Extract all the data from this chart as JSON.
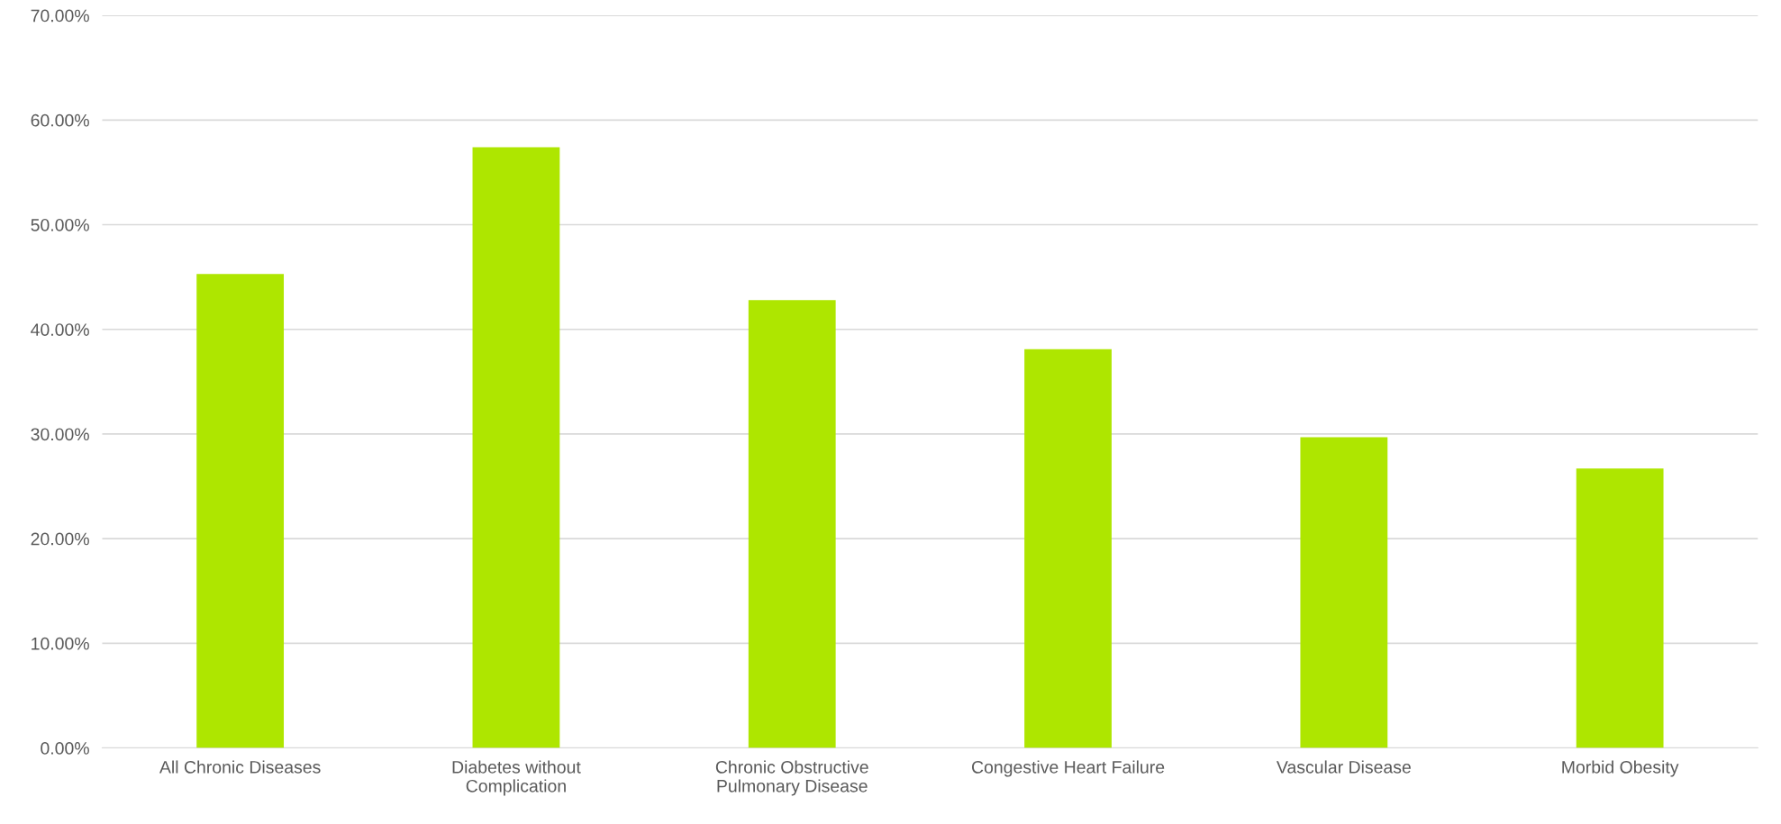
{
  "chart_data": {
    "type": "bar",
    "categories": [
      "All Chronic Diseases",
      "Diabetes without Complication",
      "Chronic Obstructive Pulmonary Disease",
      "Congestive Heart Failure",
      "Vascular Disease",
      "Morbid Obesity"
    ],
    "values": [
      45.3,
      57.4,
      42.8,
      38.1,
      29.7,
      26.7
    ],
    "color": "#aee600",
    "ylim": [
      0,
      70
    ],
    "yticks": [
      {
        "value": 0,
        "label": "0.00%"
      },
      {
        "value": 10,
        "label": "10.00%"
      },
      {
        "value": 20,
        "label": "20.00%"
      },
      {
        "value": 30,
        "label": "30.00%"
      },
      {
        "value": 40,
        "label": "40.00%"
      },
      {
        "value": 50,
        "label": "50.00%"
      },
      {
        "value": 60,
        "label": "60.00%"
      },
      {
        "value": 70,
        "label": "70.00%"
      }
    ],
    "grid": "y"
  }
}
